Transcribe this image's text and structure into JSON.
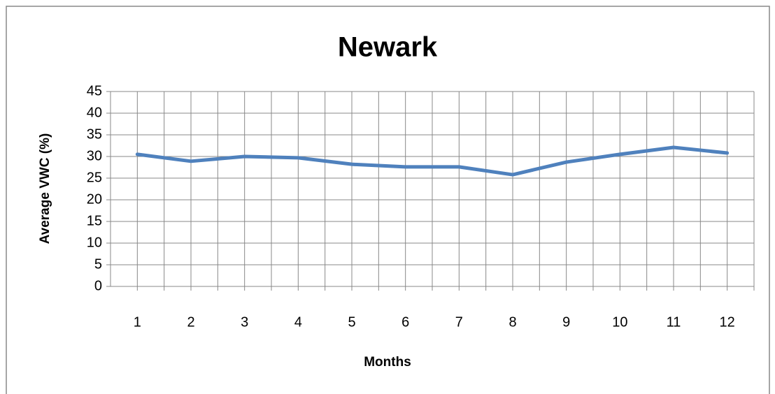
{
  "chart_data": {
    "type": "line",
    "title": "Newark",
    "x_label": "Months",
    "y_label": "Average VWC (%)",
    "categories": [
      "1",
      "2",
      "3",
      "4",
      "5",
      "6",
      "7",
      "8",
      "9",
      "10",
      "11",
      "12"
    ],
    "series": [
      {
        "name": "Newark",
        "color": "#4f81bd",
        "values": [
          30.5,
          28.9,
          30.0,
          29.7,
          28.2,
          27.6,
          27.6,
          25.8,
          28.7,
          30.5,
          32.1,
          30.8
        ]
      }
    ],
    "ylim": [
      0,
      45
    ],
    "yticks": [
      0,
      5,
      10,
      15,
      20,
      25,
      30,
      35,
      40,
      45
    ],
    "grid": true,
    "legend": false
  }
}
